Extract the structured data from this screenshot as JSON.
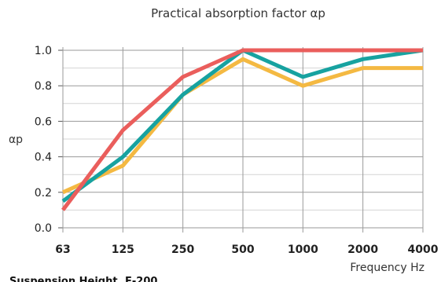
{
  "chart_data": {
    "type": "line",
    "title": "Practical absorption factor αp",
    "ylabel": "αp",
    "xlabel": "Frequency Hz",
    "footer": "Suspension Height, E-200",
    "categories": [
      "63",
      "125",
      "250",
      "500",
      "1000",
      "2000",
      "4000"
    ],
    "ylim": [
      0,
      1.0
    ],
    "yticks": [
      "0.0",
      "0.2",
      "0.4",
      "0.6",
      "0.8",
      "1.0"
    ],
    "grid": true,
    "series": [
      {
        "color": "#f4b942",
        "values": [
          0.2,
          0.35,
          0.75,
          0.95,
          0.8,
          0.9,
          0.9
        ]
      },
      {
        "color": "#17a2a0",
        "values": [
          0.15,
          0.4,
          0.75,
          1.0,
          0.85,
          0.95,
          1.0
        ]
      },
      {
        "color": "#ea5e5c",
        "values": [
          0.1,
          0.55,
          0.85,
          1.0,
          1.0,
          1.0,
          1.0
        ]
      }
    ]
  }
}
